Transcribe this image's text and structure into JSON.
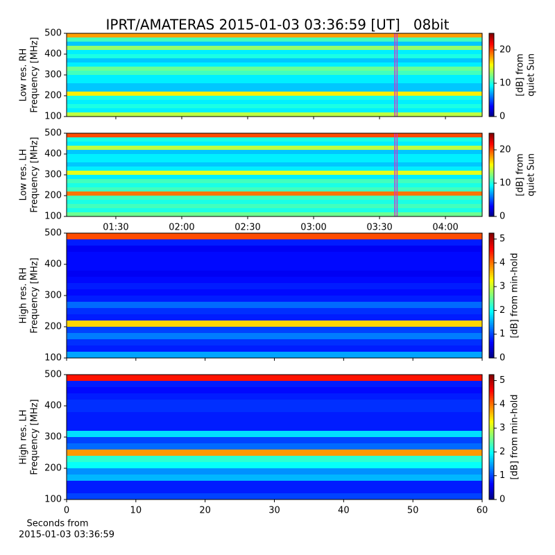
{
  "title": "IPRT/AMATERAS 2015-01-03 03:36:59 [UT]   08bit",
  "chart_data": [
    {
      "type": "heatmap",
      "ylabel": [
        "Low res. RH",
        "Frequency [MHz]"
      ],
      "clabel": [
        "[dB] from",
        "quiet Sun"
      ],
      "xlim": [
        67.6,
        256.7
      ],
      "xticks": [
        90,
        120,
        150,
        180,
        210,
        240
      ],
      "ylim": [
        100,
        500
      ],
      "yticks": [
        100,
        200,
        300,
        400,
        500
      ],
      "clim": [
        0,
        25
      ],
      "cticks": [
        0,
        10,
        20
      ],
      "marker_x": [
        216.98,
        217.98
      ],
      "marker_color": "#cc33cc",
      "y": [
        110,
        130,
        150,
        170,
        190,
        210,
        230,
        250,
        270,
        290,
        310,
        330,
        350,
        370,
        390,
        410,
        430,
        450,
        470,
        490
      ],
      "values": [
        14,
        9,
        10,
        9,
        10,
        16,
        8,
        8,
        9,
        9,
        11,
        12,
        9,
        8,
        10,
        9,
        13,
        8,
        11,
        18
      ]
    },
    {
      "type": "heatmap",
      "ylabel": [
        "Low res. LH",
        "Frequency [MHz]"
      ],
      "clabel": [
        "[dB] from",
        "quiet Sun"
      ],
      "xlim": [
        67.6,
        256.7
      ],
      "xticks": [
        {
          "value": 90,
          "label": "01:30"
        },
        {
          "value": 120,
          "label": "02:00"
        },
        {
          "value": 150,
          "label": "02:30"
        },
        {
          "value": 180,
          "label": "03:00"
        },
        {
          "value": 210,
          "label": "03:30"
        },
        {
          "value": 240,
          "label": "04:00"
        }
      ],
      "ylim": [
        100,
        500
      ],
      "yticks": [
        100,
        200,
        300,
        400,
        500
      ],
      "clim": [
        0,
        25
      ],
      "cticks": [
        0,
        10,
        20
      ],
      "marker_x": [
        216.98,
        217.98
      ],
      "marker_color": "#cc33cc",
      "y": [
        110,
        130,
        150,
        170,
        190,
        210,
        230,
        250,
        270,
        290,
        310,
        330,
        350,
        370,
        390,
        410,
        430,
        450,
        470,
        490
      ],
      "values": [
        12,
        10,
        11,
        10,
        11,
        19,
        11,
        10,
        11,
        9,
        15,
        9,
        8,
        9,
        9,
        8,
        14,
        9,
        10,
        20
      ]
    },
    {
      "type": "heatmap",
      "ylabel": [
        "High res. RH",
        "Frequency [MHz]"
      ],
      "clabel": [
        "[dB] from min-hold"
      ],
      "xlim": [
        0,
        60
      ],
      "xticks": [
        0,
        10,
        20,
        30,
        40,
        50,
        60
      ],
      "ylim": [
        100,
        500
      ],
      "yticks": [
        100,
        200,
        300,
        400,
        500
      ],
      "clim": [
        0,
        5.25
      ],
      "cticks": [
        0,
        1,
        2,
        3,
        4,
        5
      ],
      "y": [
        110,
        130,
        150,
        170,
        190,
        210,
        230,
        250,
        270,
        290,
        310,
        330,
        350,
        370,
        390,
        410,
        430,
        450,
        470,
        490
      ],
      "values": [
        1.5,
        0.8,
        0.9,
        1.3,
        1.0,
        3.5,
        0.8,
        0.9,
        1.2,
        0.8,
        0.7,
        0.8,
        0.7,
        0.6,
        0.7,
        0.7,
        0.7,
        0.6,
        0.8,
        4.2
      ]
    },
    {
      "type": "heatmap",
      "ylabel": [
        "High res. LH",
        "Frequency [MHz]"
      ],
      "clabel": [
        "[dB] from min-hold"
      ],
      "xlabel": [
        "Seconds from",
        "2015-01-03 03:36:59"
      ],
      "xlim": [
        0,
        60
      ],
      "xticks": [
        0,
        10,
        20,
        30,
        40,
        50,
        60
      ],
      "ylim": [
        100,
        500
      ],
      "yticks": [
        100,
        200,
        300,
        400,
        500
      ],
      "clim": [
        0,
        5.25
      ],
      "cticks": [
        0,
        1,
        2,
        3,
        4,
        5
      ],
      "y": [
        110,
        130,
        150,
        170,
        190,
        210,
        230,
        250,
        270,
        290,
        310,
        330,
        350,
        370,
        390,
        410,
        430,
        450,
        470,
        490
      ],
      "values": [
        1.0,
        0.8,
        0.8,
        1.6,
        1.4,
        2.0,
        2.2,
        3.8,
        1.2,
        1.0,
        1.8,
        0.8,
        0.8,
        0.8,
        0.9,
        0.9,
        0.8,
        0.7,
        0.8,
        4.5
      ]
    }
  ]
}
